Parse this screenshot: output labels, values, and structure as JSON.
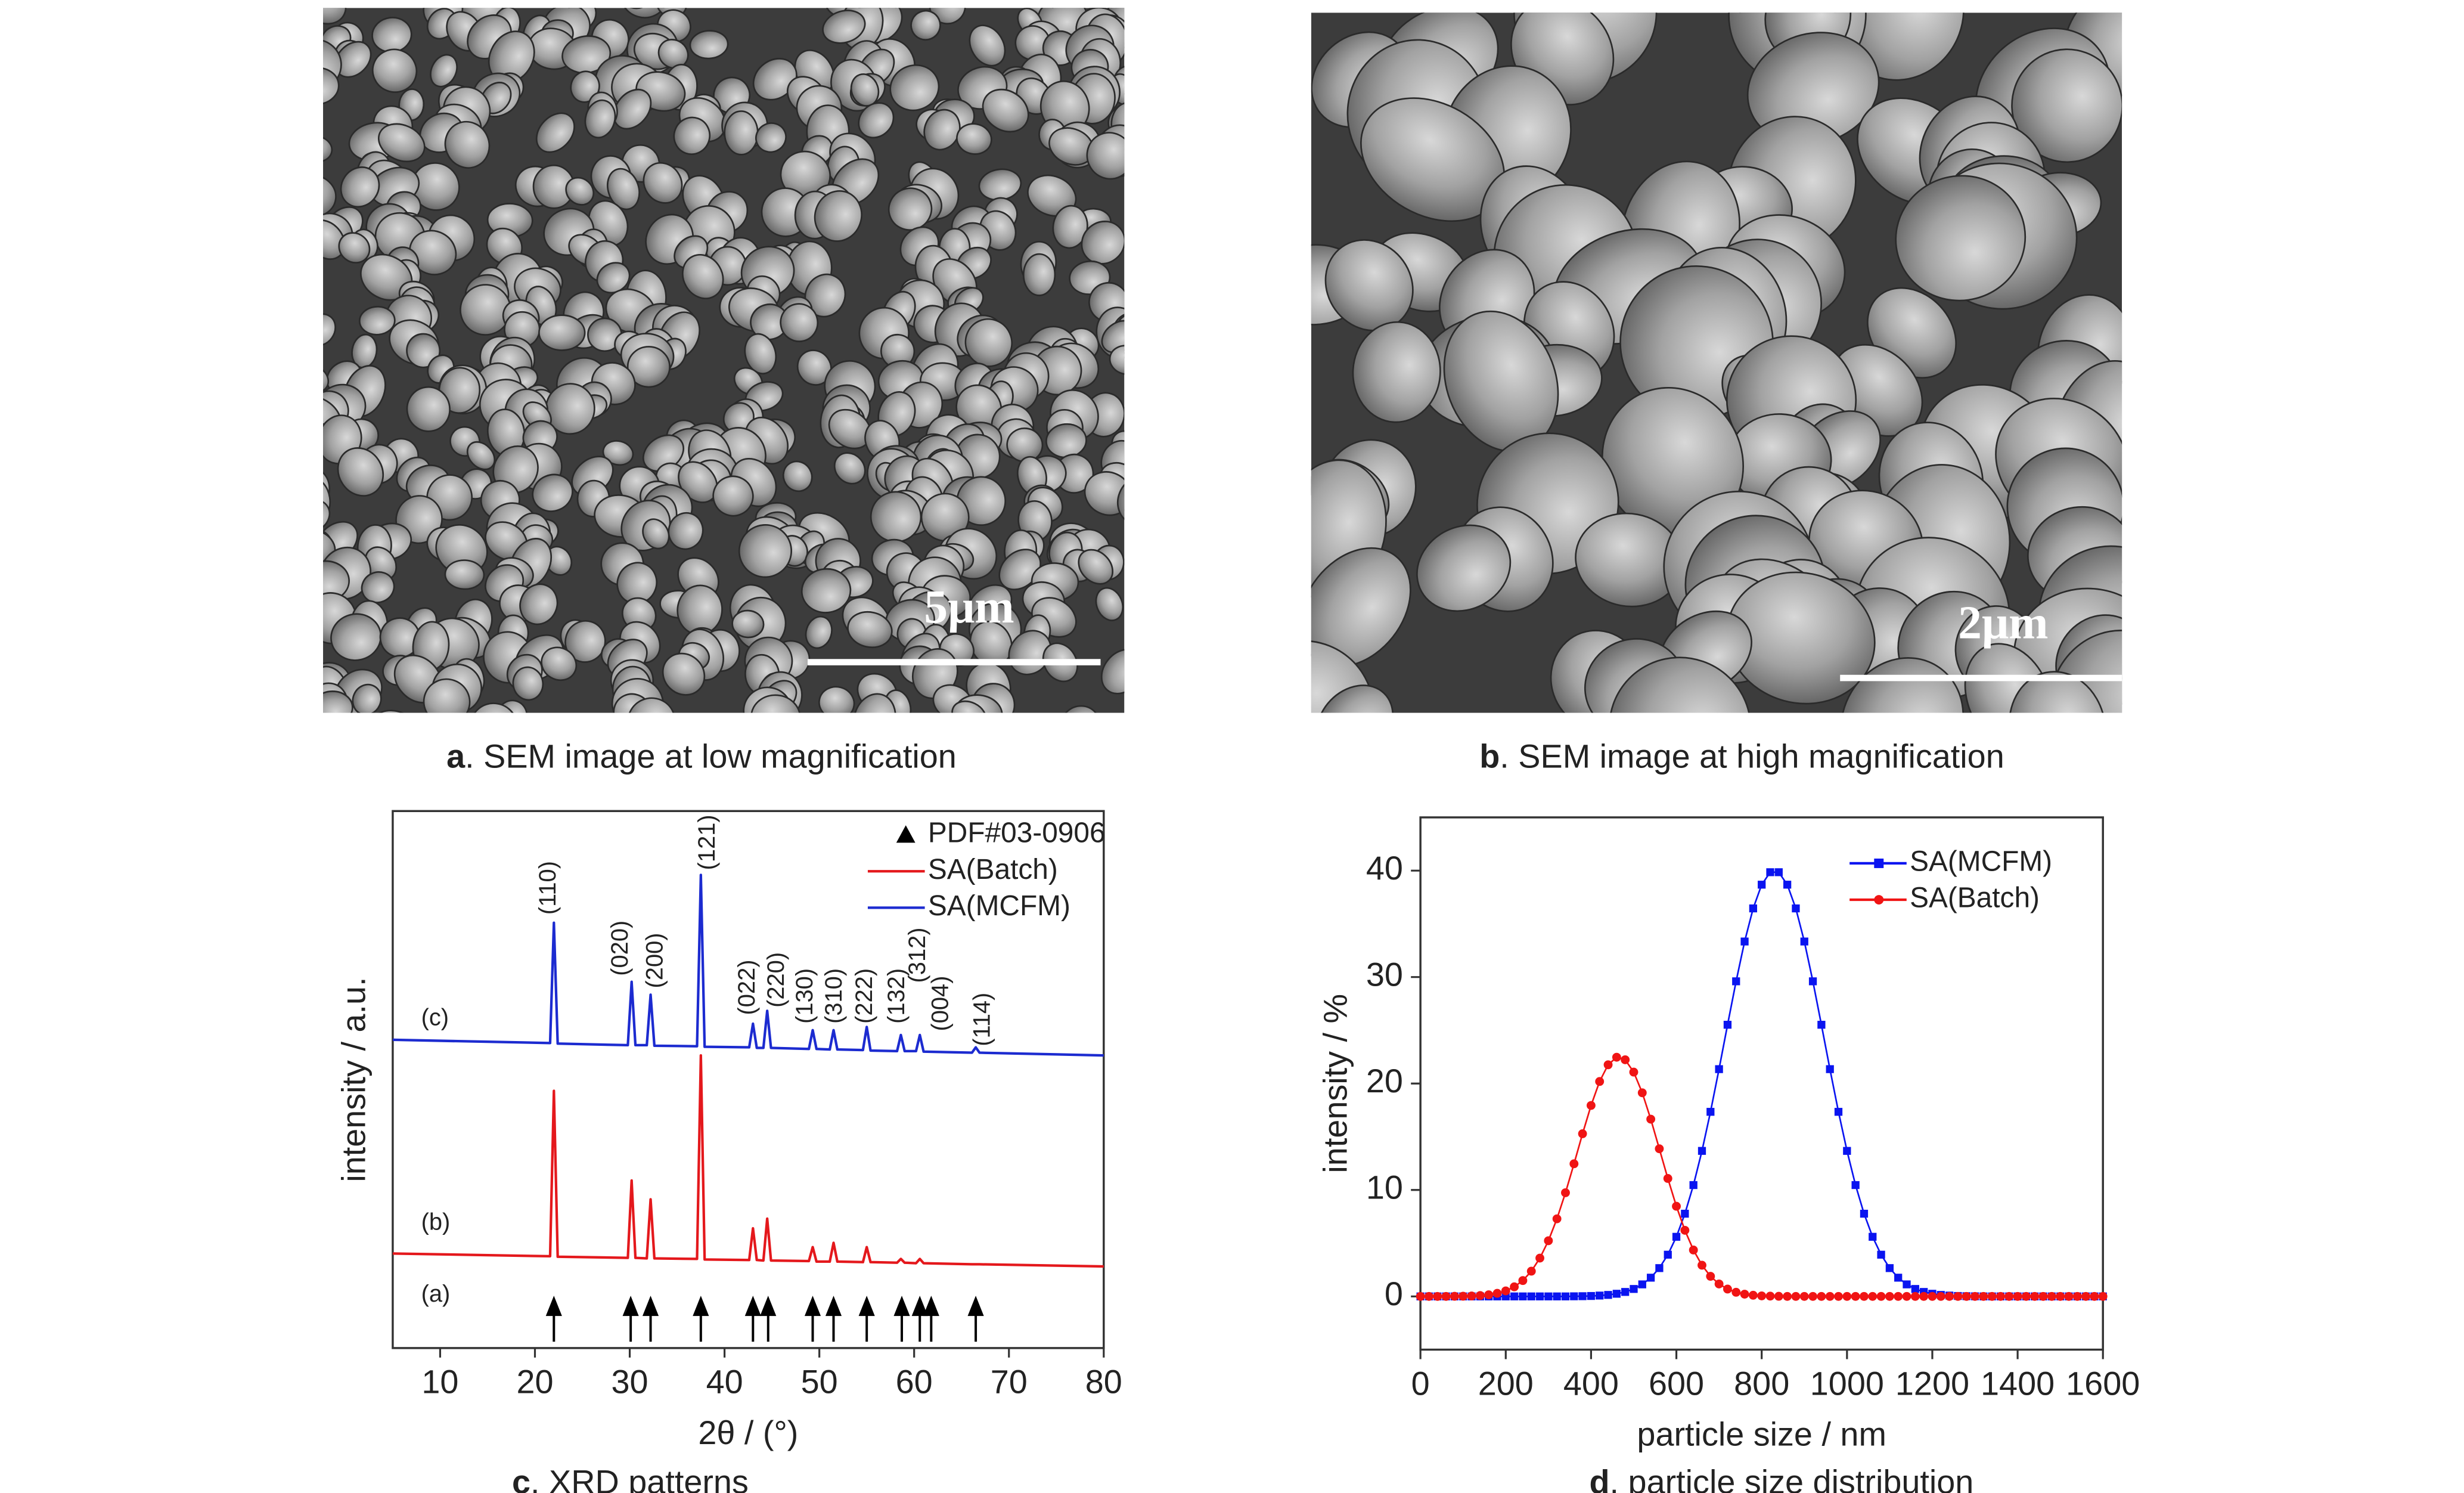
{
  "figure": {
    "panels": [
      {
        "label": "a",
        "caption": ". SEM image at low magnification",
        "scale_bar": "5μm"
      },
      {
        "label": "b",
        "caption": ". SEM image at high magnification",
        "scale_bar": "2μm"
      }
    ]
  },
  "chart_data": [
    {
      "type": "line",
      "label": "c",
      "caption": ". XRD patterns",
      "xlabel": "2θ / (°)",
      "ylabel": "intensity / a.u.",
      "xlim": [
        5,
        80
      ],
      "xticks": [
        10,
        20,
        30,
        40,
        50,
        60,
        70,
        80
      ],
      "ylim": [
        0,
        100
      ],
      "legend": "upper right",
      "x": [
        5,
        21.6,
        22,
        22.4,
        29.8,
        30.2,
        30.6,
        31.8,
        32.2,
        32.6,
        37.1,
        37.5,
        37.9,
        42.6,
        43,
        43.4,
        44.1,
        44.5,
        44.9,
        48.9,
        49.3,
        49.7,
        51.1,
        51.5,
        51.9,
        54.6,
        55,
        55.4,
        58.2,
        58.6,
        59,
        60.2,
        60.6,
        61,
        66.1,
        66.5,
        66.9,
        80
      ],
      "reference": {
        "name": "PDF#03-0906",
        "color": "#000000",
        "x": [
          22,
          30.1,
          32.2,
          37.5,
          43,
          44.6,
          49.3,
          51.5,
          55,
          58.7,
          60.6,
          61.8,
          66.5
        ]
      },
      "series": [
        {
          "name": "SA(Batch)",
          "color": "#e4181c",
          "values": [
            17.6,
            17.1,
            47.9,
            17.0,
            16.8,
            31.2,
            16.8,
            16.7,
            27.7,
            16.7,
            16.6,
            54.5,
            16.5,
            16.4,
            22.3,
            16.4,
            16.3,
            24.1,
            16.3,
            16.2,
            18.8,
            16.1,
            16.1,
            19.6,
            16.1,
            16.0,
            18.8,
            16.0,
            15.9,
            16.6,
            15.9,
            15.8,
            16.6,
            15.8,
            15.6,
            15.6,
            15.6,
            15.2
          ]
        },
        {
          "name": "SA(MCFM)",
          "color": "#1c2bd0",
          "values": [
            57.4,
            56.8,
            79.2,
            56.7,
            56.4,
            68.2,
            56.4,
            56.4,
            65.8,
            56.3,
            56.2,
            88.1,
            56.1,
            56.0,
            60.4,
            55.9,
            55.9,
            62.8,
            55.9,
            55.7,
            59.2,
            55.7,
            55.6,
            59.2,
            55.6,
            55.5,
            59.8,
            55.4,
            55.3,
            58.3,
            55.3,
            55.3,
            58.3,
            55.2,
            55.0,
            56.0,
            55.0,
            54.5
          ]
        }
      ],
      "peak_labels": [
        {
          "text": "(110)",
          "x": 21.5,
          "y": 80.7
        },
        {
          "text": "(020)",
          "x": 29.1,
          "y": 69.3
        },
        {
          "text": "(200)",
          "x": 32.8,
          "y": 67
        },
        {
          "text": "(121)",
          "x": 38.3,
          "y": 89
        },
        {
          "text": "(022)",
          "x": 42.5,
          "y": 62
        },
        {
          "text": "(220)",
          "x": 45.6,
          "y": 63.4
        },
        {
          "text": "(130)",
          "x": 48.6,
          "y": 60.4
        },
        {
          "text": "(310)",
          "x": 51.7,
          "y": 60.4
        },
        {
          "text": "(222)",
          "x": 54.9,
          "y": 60.4
        },
        {
          "text": "(132)",
          "x": 58.3,
          "y": 60.4
        },
        {
          "text": "(312)",
          "x": 60.5,
          "y": 68
        },
        {
          "text": "(004)",
          "x": 62.9,
          "y": 59
        },
        {
          "text": "(114)",
          "x": 67.3,
          "y": 56.2
        }
      ],
      "trace_labels": [
        {
          "text": "(c)",
          "x": 8,
          "y": 61.3
        },
        {
          "text": "(b)",
          "x": 8,
          "y": 23.2
        },
        {
          "text": "(a)",
          "x": 8,
          "y": 9.8
        }
      ]
    },
    {
      "type": "line",
      "label": "d",
      "caption": ". particle size distribution",
      "xlabel": "particle size / nm",
      "ylabel": "intensity / %",
      "xlim": [
        0,
        1600
      ],
      "xticks": [
        0,
        200,
        400,
        600,
        800,
        1000,
        1200,
        1400,
        1600
      ],
      "ylim": [
        -5,
        45
      ],
      "yticks": [
        0,
        10,
        20,
        30,
        40
      ],
      "legend": "upper right",
      "x": [
        0,
        20,
        40,
        60,
        80,
        100,
        120,
        140,
        160,
        180,
        200,
        220,
        240,
        260,
        280,
        300,
        320,
        340,
        360,
        380,
        400,
        420,
        440,
        460,
        480,
        500,
        520,
        540,
        560,
        580,
        600,
        620,
        640,
        660,
        680,
        700,
        720,
        740,
        760,
        780,
        800,
        820,
        840,
        860,
        880,
        900,
        920,
        940,
        960,
        980,
        1000,
        1020,
        1040,
        1060,
        1080,
        1100,
        1120,
        1140,
        1160,
        1180,
        1200,
        1220,
        1240,
        1260,
        1280,
        1300,
        1320,
        1340,
        1360,
        1380,
        1400,
        1420,
        1440,
        1460,
        1480,
        1500,
        1520,
        1540,
        1560,
        1580,
        1600
      ],
      "series": [
        {
          "name": "SA(MCFM)",
          "color": "#0a14f0",
          "marker": "square",
          "values": [
            0,
            0,
            0,
            0,
            0,
            0,
            0,
            0,
            0,
            0,
            0,
            0,
            0,
            0,
            0,
            0,
            0,
            0,
            0.01,
            0.02,
            0.04,
            0.08,
            0.14,
            0.25,
            0.42,
            0.7,
            1.13,
            1.76,
            2.66,
            3.92,
            5.6,
            7.77,
            10.46,
            13.67,
            17.34,
            21.35,
            25.52,
            29.6,
            33.34,
            36.45,
            38.68,
            39.85,
            39.85,
            38.68,
            36.45,
            33.34,
            29.6,
            25.52,
            21.35,
            17.34,
            13.67,
            10.46,
            7.77,
            5.6,
            3.92,
            2.66,
            1.76,
            1.13,
            0.7,
            0.42,
            0.25,
            0.14,
            0.08,
            0.04,
            0.02,
            0.01,
            0,
            0,
            0,
            0,
            0,
            0,
            0,
            0,
            0,
            0,
            0,
            0,
            0,
            0,
            0
          ]
        },
        {
          "name": "SA(Batch)",
          "color": "#f01414",
          "marker": "circle",
          "values": [
            0,
            0,
            0,
            0,
            0.01,
            0.02,
            0.04,
            0.08,
            0.15,
            0.29,
            0.52,
            0.9,
            1.49,
            2.37,
            3.6,
            5.23,
            7.29,
            9.74,
            12.46,
            15.28,
            17.94,
            20.19,
            21.76,
            22.47,
            22.23,
            21.07,
            19.13,
            16.65,
            13.87,
            11.08,
            8.47,
            6.21,
            4.36,
            2.93,
            1.89,
            1.17,
            0.69,
            0.39,
            0.21,
            0.11,
            0.05,
            0.03,
            0.01,
            0,
            0,
            0,
            0,
            0,
            0,
            0,
            0,
            0,
            0,
            0,
            0,
            0,
            0,
            0,
            0,
            0,
            0,
            0,
            0,
            0,
            0,
            0,
            0,
            0,
            0,
            0,
            0,
            0,
            0,
            0,
            0,
            0,
            0,
            0,
            0,
            0,
            0
          ]
        }
      ]
    }
  ]
}
